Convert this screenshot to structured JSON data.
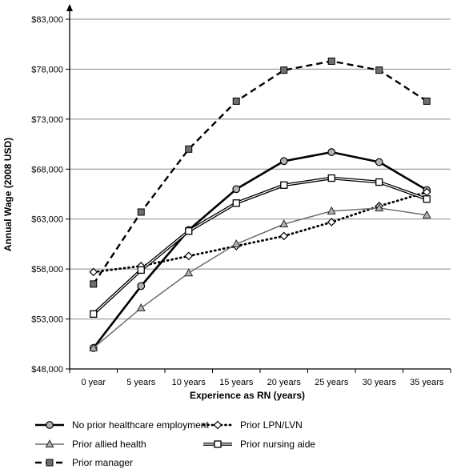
{
  "chart_data": {
    "type": "line",
    "title": "",
    "xlabel": "Experience as RN (years)",
    "ylabel": "Annual Wage (2008 USD)",
    "categories": [
      "0 year",
      "5 years",
      "10 years",
      "15 years",
      "20 years",
      "25 years",
      "30 years",
      "35 years"
    ],
    "y_ticks": [
      "$48,000",
      "$53,000",
      "$58,000",
      "$63,000",
      "$68,000",
      "$73,000",
      "$78,000",
      "$83,000"
    ],
    "ylim": [
      48000,
      83000
    ],
    "grid": "horizontal",
    "legend_position": "bottom",
    "series": [
      {
        "name": "No prior healthcare employment",
        "style": "solid-thick",
        "marker": "circle",
        "values": [
          50100,
          56300,
          61900,
          66000,
          68800,
          69700,
          68700,
          65900
        ]
      },
      {
        "name": "Prior LPN/LVN",
        "style": "dotted",
        "marker": "diamond",
        "values": [
          57700,
          58300,
          59300,
          60300,
          61300,
          62700,
          64300,
          65700
        ]
      },
      {
        "name": "Prior allied health",
        "style": "solid-gray",
        "marker": "triangle",
        "values": [
          50100,
          54100,
          57600,
          60500,
          62500,
          63800,
          64100,
          63400
        ]
      },
      {
        "name": "Prior nursing aide",
        "style": "double",
        "marker": "square-open",
        "values": [
          53500,
          57900,
          61800,
          64600,
          66400,
          67100,
          66700,
          65000
        ]
      },
      {
        "name": "Prior manager",
        "style": "dashed",
        "marker": "square-filled",
        "values": [
          56500,
          63700,
          70000,
          74800,
          77900,
          78800,
          77900,
          74800
        ]
      }
    ],
    "colors": {
      "axis": "#000000",
      "grid": "#8a8a8a",
      "gray_series": "#6e6e6e",
      "marker_fill": "#b4b4b4",
      "manager_fill": "#707070"
    }
  }
}
